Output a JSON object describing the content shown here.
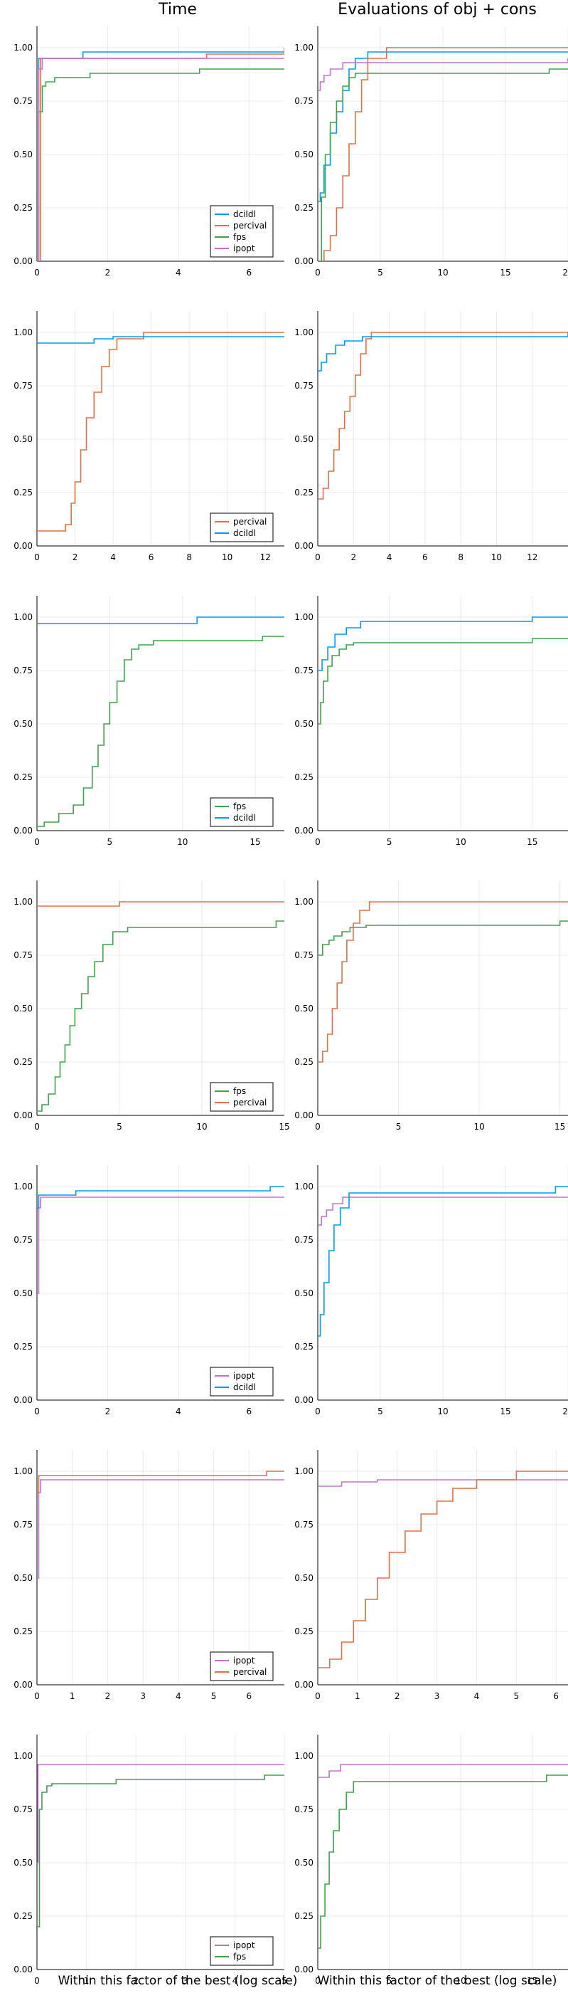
{
  "column_titles": [
    "Time",
    "Evaluations of obj + cons"
  ],
  "xlabel": "Within this factor of the best (log scale)",
  "colors": {
    "dcildl": "#009af9",
    "percival": "#e26f46",
    "fps": "#3da44d",
    "ipopt": "#c271d2"
  },
  "chart_data": [
    {
      "type": "line",
      "step": true,
      "panel": "time",
      "legend_position": "bottom-right",
      "ylim": [
        0,
        1.1
      ],
      "xlim": [
        0,
        7
      ],
      "xticks": [
        0,
        2,
        4,
        6
      ],
      "yticks": [
        "0.00",
        "0.25",
        "0.50",
        "0.75",
        "1.00"
      ],
      "grid": true,
      "series": [
        {
          "name": "dcildl",
          "x": [
            0,
            0.05,
            1.1,
            1.3,
            7
          ],
          "y": [
            0,
            0.95,
            0.95,
            0.98,
            0.98
          ]
        },
        {
          "name": "percival",
          "x": [
            0,
            0.1,
            4.7,
            4.8,
            6.4,
            7
          ],
          "y": [
            0,
            0.95,
            0.95,
            0.97,
            0.97,
            1.0
          ]
        },
        {
          "name": "fps",
          "x": [
            0,
            0.05,
            0.15,
            0.25,
            0.5,
            1.5,
            4.6,
            7
          ],
          "y": [
            0,
            0.7,
            0.82,
            0.84,
            0.86,
            0.88,
            0.9,
            0.9
          ]
        },
        {
          "name": "ipopt",
          "x": [
            0,
            0.05,
            0.15,
            7
          ],
          "y": [
            0,
            0.9,
            0.95,
            0.95
          ]
        }
      ]
    },
    {
      "type": "line",
      "step": true,
      "panel": "evaluations",
      "legend_position": "none",
      "ylim": [
        0,
        1.1
      ],
      "xlim": [
        0,
        20
      ],
      "xticks": [
        0,
        5,
        10,
        15,
        20
      ],
      "yticks": [
        "0.00",
        "0.25",
        "0.50",
        "0.75",
        "1.00"
      ],
      "grid": true,
      "series": [
        {
          "name": "dcildl",
          "x": [
            0,
            0.2,
            0.5,
            1,
            1.5,
            2,
            2.5,
            3,
            4,
            20
          ],
          "y": [
            0.28,
            0.32,
            0.45,
            0.6,
            0.7,
            0.8,
            0.9,
            0.95,
            0.98,
            0.98
          ]
        },
        {
          "name": "percival",
          "x": [
            0,
            0.5,
            1,
            1.5,
            2,
            2.5,
            3,
            3.5,
            4,
            5.5,
            20
          ],
          "y": [
            0,
            0.05,
            0.12,
            0.25,
            0.4,
            0.55,
            0.7,
            0.85,
            0.95,
            1.0,
            1.0
          ]
        },
        {
          "name": "fps",
          "x": [
            0,
            0.3,
            0.6,
            1,
            1.5,
            2,
            2.5,
            3,
            18.5,
            20
          ],
          "y": [
            0,
            0.3,
            0.5,
            0.65,
            0.75,
            0.82,
            0.86,
            0.88,
            0.9,
            0.9
          ]
        },
        {
          "name": "ipopt",
          "x": [
            0,
            0.2,
            0.5,
            1,
            2,
            20
          ],
          "y": [
            0.8,
            0.84,
            0.87,
            0.9,
            0.93,
            0.95
          ]
        }
      ]
    },
    {
      "type": "line",
      "step": true,
      "panel": "time",
      "legend_position": "bottom-right",
      "ylim": [
        0,
        1.1
      ],
      "xlim": [
        0,
        13
      ],
      "xticks": [
        0,
        2,
        4,
        6,
        8,
        10,
        12
      ],
      "yticks": [
        "0.00",
        "0.25",
        "0.50",
        "0.75",
        "1.00"
      ],
      "grid": true,
      "series": [
        {
          "name": "percival",
          "x": [
            0,
            1.5,
            1.8,
            2,
            2.3,
            2.6,
            3,
            3.4,
            3.8,
            4.2,
            5.6,
            13
          ],
          "y": [
            0.07,
            0.1,
            0.2,
            0.3,
            0.45,
            0.6,
            0.72,
            0.84,
            0.92,
            0.97,
            1.0,
            1.0
          ]
        },
        {
          "name": "dcildl",
          "x": [
            0,
            3,
            4,
            13
          ],
          "y": [
            0.95,
            0.97,
            0.98,
            0.98
          ]
        }
      ]
    },
    {
      "type": "line",
      "step": true,
      "panel": "evaluations",
      "legend_position": "none",
      "ylim": [
        0,
        1.1
      ],
      "xlim": [
        0,
        14
      ],
      "xticks": [
        0,
        2,
        4,
        6,
        8,
        10,
        12
      ],
      "yticks": [
        "0.00",
        "0.25",
        "0.50",
        "0.75",
        "1.00"
      ],
      "grid": true,
      "series": [
        {
          "name": "percival",
          "x": [
            0,
            0.3,
            0.6,
            0.9,
            1.2,
            1.5,
            1.8,
            2.1,
            2.4,
            2.7,
            3,
            14
          ],
          "y": [
            0.22,
            0.27,
            0.35,
            0.45,
            0.55,
            0.63,
            0.7,
            0.8,
            0.9,
            0.97,
            1.0,
            1.0
          ]
        },
        {
          "name": "dcildl",
          "x": [
            0,
            0.2,
            0.5,
            1,
            1.5,
            2.5,
            14
          ],
          "y": [
            0.82,
            0.86,
            0.9,
            0.94,
            0.96,
            0.98,
            1.0
          ]
        }
      ]
    },
    {
      "type": "line",
      "step": true,
      "panel": "time",
      "legend_position": "bottom-right",
      "ylim": [
        0,
        1.1
      ],
      "xlim": [
        0,
        17
      ],
      "xticks": [
        0,
        5,
        10,
        15
      ],
      "yticks": [
        "0.00",
        "0.25",
        "0.50",
        "0.75",
        "1.00"
      ],
      "grid": true,
      "series": [
        {
          "name": "fps",
          "x": [
            0,
            0.5,
            1.5,
            2.5,
            3.2,
            3.8,
            4.2,
            4.6,
            5,
            5.5,
            6,
            6.5,
            7,
            8,
            15.5,
            17
          ],
          "y": [
            0.02,
            0.04,
            0.08,
            0.12,
            0.2,
            0.3,
            0.4,
            0.5,
            0.6,
            0.7,
            0.8,
            0.85,
            0.87,
            0.89,
            0.91,
            0.91
          ]
        },
        {
          "name": "dcildl",
          "x": [
            0,
            11,
            17
          ],
          "y": [
            0.97,
            1.0,
            1.0
          ]
        }
      ]
    },
    {
      "type": "line",
      "step": true,
      "panel": "evaluations",
      "legend_position": "none",
      "ylim": [
        0,
        1.1
      ],
      "xlim": [
        0,
        17.5
      ],
      "xticks": [
        0,
        5,
        10,
        15
      ],
      "yticks": [
        "0.00",
        "0.25",
        "0.50",
        "0.75",
        "1.00"
      ],
      "grid": true,
      "series": [
        {
          "name": "fps",
          "x": [
            0,
            0.2,
            0.4,
            0.7,
            1,
            1.5,
            2,
            2.5,
            15,
            17.5
          ],
          "y": [
            0.5,
            0.6,
            0.7,
            0.77,
            0.82,
            0.85,
            0.87,
            0.88,
            0.9,
            0.9
          ]
        },
        {
          "name": "dcildl",
          "x": [
            0,
            0.3,
            0.7,
            1.2,
            2,
            3,
            15,
            17.5
          ],
          "y": [
            0.75,
            0.8,
            0.86,
            0.92,
            0.95,
            0.98,
            1.0,
            1.0
          ]
        }
      ]
    },
    {
      "type": "line",
      "step": true,
      "panel": "time",
      "legend_position": "bottom-right",
      "ylim": [
        0,
        1.1
      ],
      "xlim": [
        0,
        15
      ],
      "xticks": [
        0,
        5,
        10,
        15
      ],
      "yticks": [
        "0.00",
        "0.25",
        "0.50",
        "0.75",
        "1.00"
      ],
      "grid": true,
      "series": [
        {
          "name": "fps",
          "x": [
            0,
            0.3,
            0.7,
            1.1,
            1.4,
            1.7,
            2,
            2.3,
            2.7,
            3.1,
            3.5,
            4,
            4.6,
            5.5,
            14.5,
            15
          ],
          "y": [
            0.02,
            0.05,
            0.1,
            0.18,
            0.25,
            0.33,
            0.42,
            0.5,
            0.57,
            0.65,
            0.72,
            0.8,
            0.86,
            0.88,
            0.91,
            0.91
          ]
        },
        {
          "name": "percival",
          "x": [
            0,
            5,
            15
          ],
          "y": [
            0.98,
            1.0,
            1.0
          ]
        }
      ]
    },
    {
      "type": "line",
      "step": true,
      "panel": "evaluations",
      "legend_position": "none",
      "ylim": [
        0,
        1.1
      ],
      "xlim": [
        0,
        15.5
      ],
      "xticks": [
        0,
        5,
        10,
        15
      ],
      "yticks": [
        "0.00",
        "0.25",
        "0.50",
        "0.75",
        "1.00"
      ],
      "grid": true,
      "series": [
        {
          "name": "fps",
          "x": [
            0,
            0.3,
            0.7,
            1,
            1.5,
            2,
            3,
            15,
            15.5
          ],
          "y": [
            0.75,
            0.8,
            0.82,
            0.84,
            0.86,
            0.88,
            0.89,
            0.91,
            0.91
          ]
        },
        {
          "name": "percival",
          "x": [
            0,
            0.3,
            0.6,
            0.9,
            1.2,
            1.5,
            1.8,
            2.2,
            2.6,
            3.2,
            15.5
          ],
          "y": [
            0.25,
            0.3,
            0.38,
            0.5,
            0.62,
            0.72,
            0.82,
            0.9,
            0.96,
            1.0,
            1.0
          ]
        }
      ]
    },
    {
      "type": "line",
      "step": true,
      "panel": "time",
      "legend_position": "bottom-right",
      "ylim": [
        0,
        1.1
      ],
      "xlim": [
        0,
        7
      ],
      "xticks": [
        0,
        2,
        4,
        6
      ],
      "yticks": [
        "0.00",
        "0.25",
        "0.50",
        "0.75",
        "1.00"
      ],
      "grid": true,
      "series": [
        {
          "name": "ipopt",
          "x": [
            0,
            0.05,
            0.1,
            7
          ],
          "y": [
            0.5,
            0.9,
            0.95,
            0.95
          ]
        },
        {
          "name": "dcildl",
          "x": [
            0,
            0.05,
            1.1,
            6.6,
            7
          ],
          "y": [
            0.9,
            0.96,
            0.98,
            1.0,
            1.0
          ]
        }
      ]
    },
    {
      "type": "line",
      "step": true,
      "panel": "evaluations",
      "legend_position": "none",
      "ylim": [
        0,
        1.1
      ],
      "xlim": [
        0,
        20
      ],
      "xticks": [
        0,
        5,
        10,
        15,
        20
      ],
      "yticks": [
        "0.00",
        "0.25",
        "0.50",
        "0.75",
        "1.00"
      ],
      "grid": true,
      "series": [
        {
          "name": "ipopt",
          "x": [
            0,
            0.3,
            0.7,
            1.2,
            2,
            20
          ],
          "y": [
            0.82,
            0.86,
            0.89,
            0.92,
            0.95,
            0.95
          ]
        },
        {
          "name": "dcildl",
          "x": [
            0,
            0.2,
            0.5,
            0.9,
            1.3,
            1.8,
            2.5,
            19,
            20
          ],
          "y": [
            0.3,
            0.4,
            0.55,
            0.7,
            0.82,
            0.9,
            0.97,
            1.0,
            1.0
          ]
        }
      ]
    },
    {
      "type": "line",
      "step": true,
      "panel": "time",
      "legend_position": "bottom-right",
      "ylim": [
        0,
        1.1
      ],
      "xlim": [
        0,
        7
      ],
      "xticks": [
        0,
        1,
        2,
        3,
        4,
        5,
        6
      ],
      "yticks": [
        "0.00",
        "0.25",
        "0.50",
        "0.75",
        "1.00"
      ],
      "grid": true,
      "series": [
        {
          "name": "ipopt",
          "x": [
            0,
            0.05,
            0.1,
            7
          ],
          "y": [
            0.5,
            0.9,
            0.96,
            0.96
          ]
        },
        {
          "name": "percival",
          "x": [
            0,
            0.05,
            6.5,
            7
          ],
          "y": [
            0.9,
            0.98,
            1.0,
            1.0
          ]
        }
      ]
    },
    {
      "type": "line",
      "step": true,
      "panel": "evaluations",
      "legend_position": "none",
      "ylim": [
        0,
        1.1
      ],
      "xlim": [
        0,
        6.3
      ],
      "xticks": [
        0,
        1,
        2,
        3,
        4,
        5,
        6
      ],
      "yticks": [
        "0.00",
        "0.25",
        "0.50",
        "0.75",
        "1.00"
      ],
      "grid": true,
      "series": [
        {
          "name": "ipopt",
          "x": [
            0,
            0.6,
            1.5,
            6.3
          ],
          "y": [
            0.93,
            0.95,
            0.96,
            0.96
          ]
        },
        {
          "name": "percival",
          "x": [
            0,
            0.3,
            0.6,
            0.9,
            1.2,
            1.5,
            1.8,
            2.2,
            2.6,
            3,
            3.4,
            4,
            5,
            6.3
          ],
          "y": [
            0.08,
            0.12,
            0.2,
            0.3,
            0.4,
            0.5,
            0.62,
            0.72,
            0.8,
            0.86,
            0.92,
            0.96,
            1.0,
            1.0
          ]
        }
      ]
    },
    {
      "type": "line",
      "step": true,
      "panel": "time",
      "legend_position": "bottom-right",
      "ylim": [
        0,
        1.1
      ],
      "xlim": [
        0,
        5
      ],
      "xticks": [
        0,
        1,
        2,
        3,
        4,
        5
      ],
      "yticks": [
        "0.00",
        "0.25",
        "0.50",
        "0.75",
        "1.00"
      ],
      "grid": true,
      "series": [
        {
          "name": "ipopt",
          "x": [
            0,
            0.02,
            5
          ],
          "y": [
            0.5,
            0.96,
            0.96
          ]
        },
        {
          "name": "fps",
          "x": [
            0,
            0.05,
            0.1,
            0.2,
            0.3,
            1.6,
            4.6,
            5
          ],
          "y": [
            0.2,
            0.75,
            0.83,
            0.86,
            0.87,
            0.89,
            0.91,
            0.91
          ]
        }
      ]
    },
    {
      "type": "line",
      "step": true,
      "panel": "evaluations",
      "legend_position": "none",
      "ylim": [
        0,
        1.1
      ],
      "xlim": [
        0,
        17.5
      ],
      "xticks": [
        0,
        5,
        10,
        15
      ],
      "yticks": [
        "0.00",
        "0.25",
        "0.50",
        "0.75",
        "1.00"
      ],
      "grid": true,
      "series": [
        {
          "name": "ipopt",
          "x": [
            0,
            0.8,
            1.6,
            17.5
          ],
          "y": [
            0.9,
            0.93,
            0.96,
            0.96
          ]
        },
        {
          "name": "fps",
          "x": [
            0,
            0.2,
            0.5,
            0.8,
            1.1,
            1.5,
            2,
            2.5,
            16,
            17.5
          ],
          "y": [
            0.1,
            0.25,
            0.4,
            0.55,
            0.65,
            0.75,
            0.83,
            0.88,
            0.91,
            0.91
          ]
        }
      ]
    }
  ]
}
